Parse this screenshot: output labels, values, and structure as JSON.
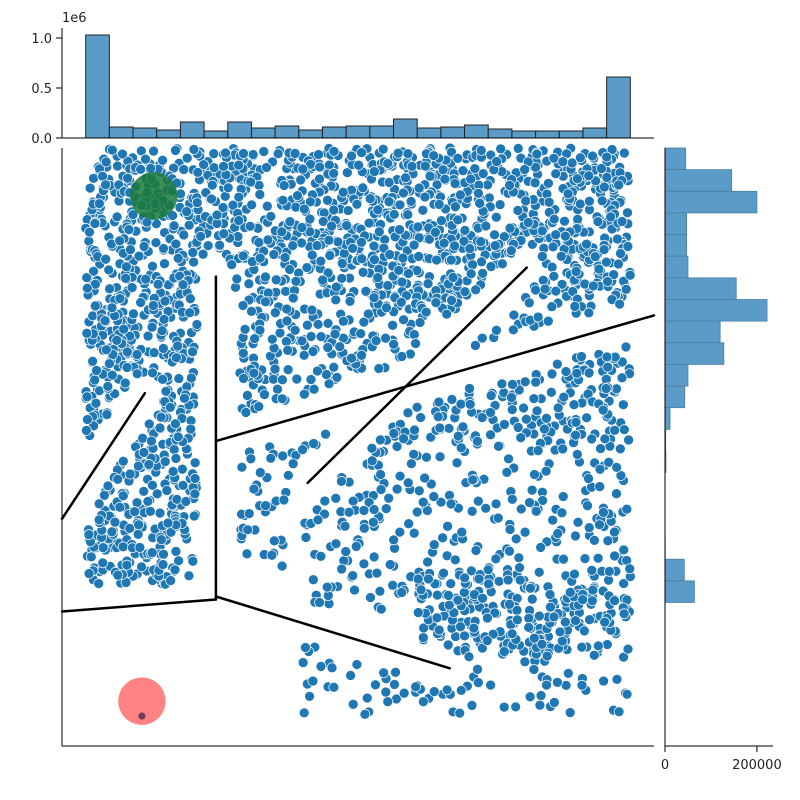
{
  "chart_data": [
    {
      "type": "scatter",
      "title": "",
      "xlabel": "",
      "ylabel": "",
      "xlim": [
        0,
        100
      ],
      "ylim": [
        0,
        100
      ],
      "grid": false,
      "point_color": "#1f77b4",
      "dense_regions": [
        {
          "x": [
            4,
            96
          ],
          "y": [
            75,
            100
          ],
          "density": "very high"
        },
        {
          "x": [
            4,
            26
          ],
          "y": [
            27,
            75
          ],
          "density": "high"
        },
        {
          "x": [
            30,
            96
          ],
          "y": [
            50,
            75
          ],
          "density": "high"
        },
        {
          "x": [
            30,
            96
          ],
          "y": [
            30,
            50
          ],
          "density": "medium"
        },
        {
          "x": [
            40,
            96
          ],
          "y": [
            5,
            30
          ],
          "density": "low"
        }
      ],
      "walls": [
        {
          "from": [
            26,
            78.5
          ],
          "to": [
            26,
            24.5
          ]
        },
        {
          "from": [
            26,
            24.5
          ],
          "to": [
            0,
            22.5
          ]
        },
        {
          "from": [
            26,
            51
          ],
          "to": [
            100,
            72
          ]
        },
        {
          "from": [
            41.5,
            44
          ],
          "to": [
            78.5,
            80
          ]
        },
        {
          "from": [
            0,
            38
          ],
          "to": [
            14,
            59
          ]
        },
        {
          "from": [
            26,
            25
          ],
          "to": [
            65.5,
            13
          ]
        }
      ],
      "markers": [
        {
          "name": "goal",
          "x": 15.5,
          "y": 92,
          "radius": 4,
          "color": "#1a7a3a",
          "opacity": 0.85
        },
        {
          "name": "start",
          "x": 13.5,
          "y": 7.5,
          "radius": 4,
          "color": "#ff5a5a",
          "opacity": 0.75
        },
        {
          "name": "agent",
          "x": 13.5,
          "y": 5,
          "radius": 0.6,
          "color": "#6a3e60",
          "opacity": 1
        }
      ]
    },
    {
      "type": "bar",
      "orientation": "vertical",
      "scale_label": "1e6",
      "ylim": [
        0,
        1.1
      ],
      "yticks": [
        "0.0",
        "0.5",
        "1.0"
      ],
      "yticks_values": [
        0.0,
        0.5,
        1.0
      ],
      "bin_range": [
        4,
        96
      ],
      "values": [
        1.03,
        0.11,
        0.1,
        0.08,
        0.16,
        0.07,
        0.16,
        0.1,
        0.12,
        0.08,
        0.11,
        0.12,
        0.12,
        0.19,
        0.1,
        0.11,
        0.13,
        0.09,
        0.07,
        0.07,
        0.07,
        0.1,
        0.61
      ]
    },
    {
      "type": "bar",
      "orientation": "horizontal",
      "xlim": [
        0,
        235000
      ],
      "xticks": [
        "0",
        "200000"
      ],
      "xticks_values": [
        0,
        200000
      ],
      "bin_range": [
        24,
        100
      ],
      "values_top_to_bottom": [
        45000,
        145000,
        200000,
        47000,
        47000,
        50000,
        155000,
        222000,
        120000,
        128000,
        50000,
        43000,
        11000,
        1500,
        2000,
        0,
        0,
        0,
        500,
        42000,
        64000
      ]
    }
  ]
}
